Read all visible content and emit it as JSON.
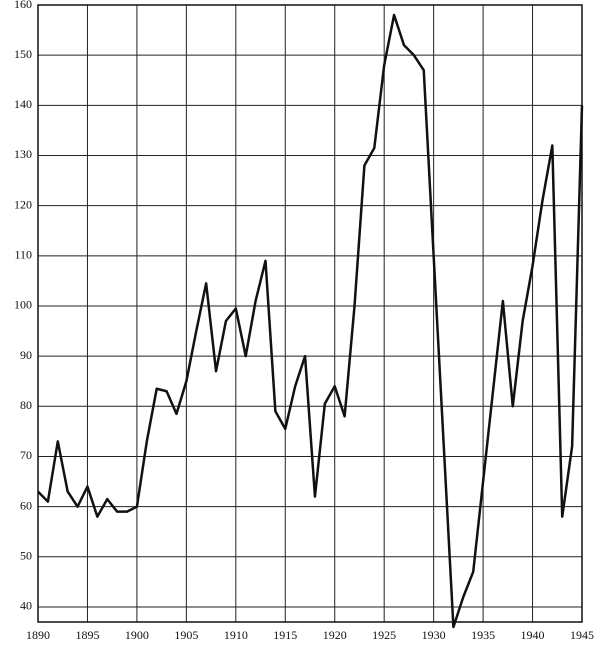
{
  "chart_data": {
    "type": "line",
    "x": [
      1890,
      1891,
      1892,
      1893,
      1894,
      1895,
      1896,
      1897,
      1898,
      1899,
      1900,
      1901,
      1902,
      1903,
      1904,
      1905,
      1906,
      1907,
      1908,
      1909,
      1910,
      1911,
      1912,
      1913,
      1914,
      1915,
      1916,
      1917,
      1918,
      1919,
      1920,
      1921,
      1922,
      1923,
      1924,
      1925,
      1926,
      1927,
      1928,
      1929,
      1930,
      1931,
      1932,
      1933,
      1934,
      1935,
      1936,
      1937,
      1938,
      1939,
      1940,
      1941,
      1942,
      1943,
      1944,
      1945
    ],
    "series": [
      {
        "color": "#111111",
        "values": [
          63,
          61,
          73,
          63,
          60,
          64,
          58,
          61.5,
          59,
          59,
          60,
          73,
          83.5,
          83,
          78.5,
          85,
          95,
          104.5,
          87,
          97,
          99.5,
          90,
          101,
          109,
          79,
          75.5,
          84,
          90,
          62,
          80.5,
          84,
          78,
          100,
          128,
          131.5,
          148,
          158,
          152,
          150,
          147,
          110,
          73,
          36,
          42,
          47,
          65,
          83,
          101,
          80,
          97,
          108,
          121,
          132,
          58,
          72,
          140
        ]
      }
    ],
    "xlim": [
      1890,
      1945
    ],
    "xticks": [
      1890,
      1895,
      1900,
      1905,
      1910,
      1915,
      1920,
      1925,
      1930,
      1935,
      1940,
      1945
    ],
    "ylim": [
      37,
      160
    ],
    "yticks": [
      40,
      50,
      60,
      70,
      80,
      90,
      100,
      110,
      120,
      130,
      140,
      150,
      160
    ],
    "grid": true
  }
}
